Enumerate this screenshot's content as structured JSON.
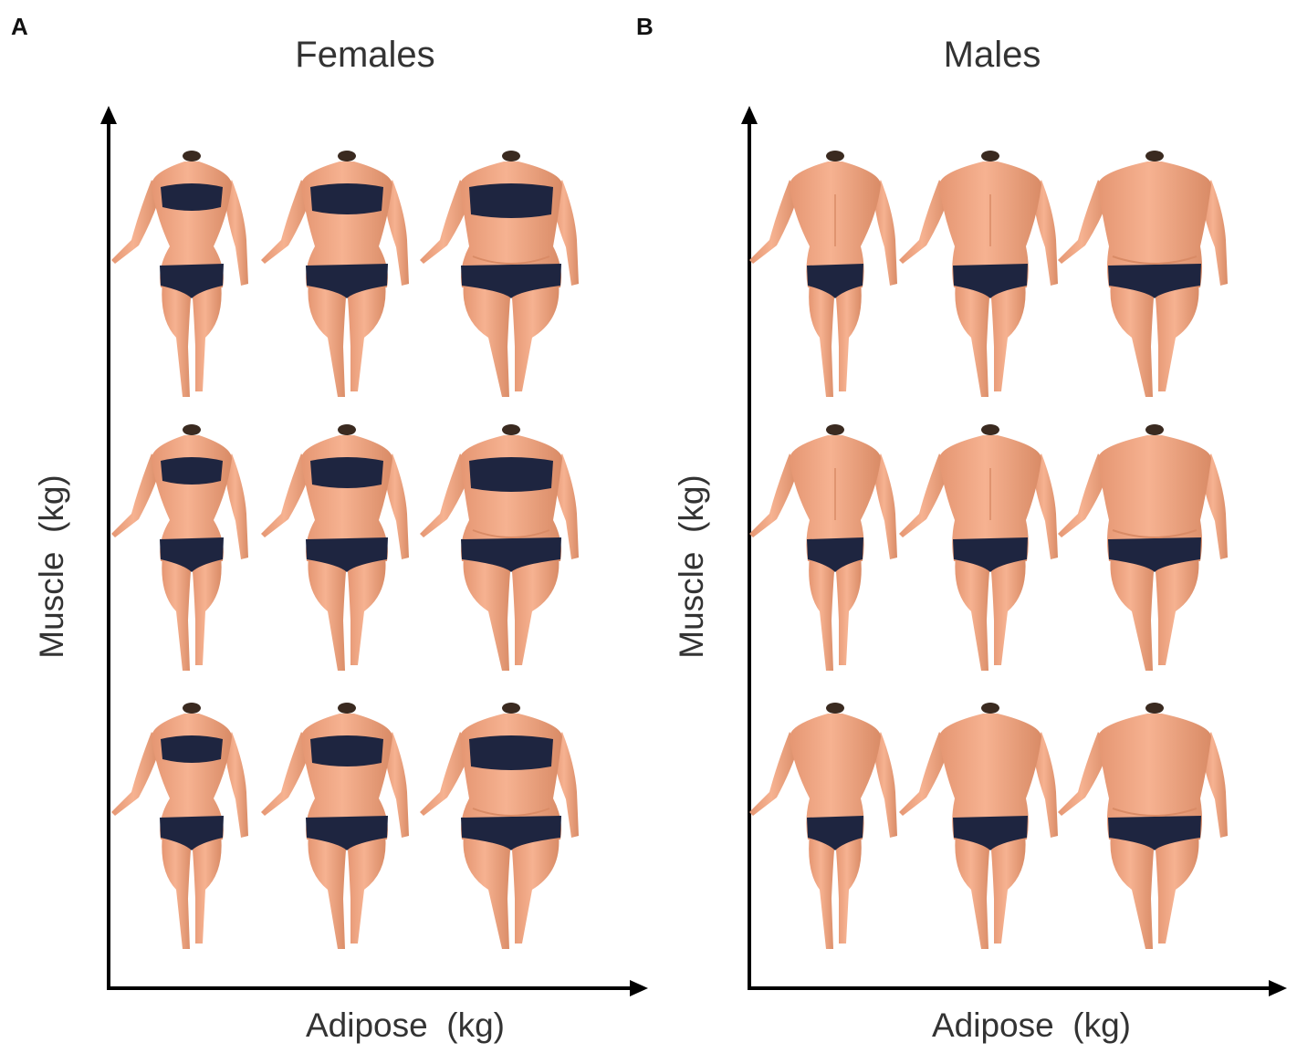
{
  "panels": [
    {
      "letter": "A",
      "title": "Females",
      "x_axis_label": "Adipose  (kg)",
      "y_axis_label": "Muscle  (kg)",
      "figure_kind": "female",
      "grid": {
        "rows": 3,
        "cols": 3,
        "row_meaning": "muscle",
        "col_meaning": "adipose"
      }
    },
    {
      "letter": "B",
      "title": "Males",
      "x_axis_label": "Adipose  (kg)",
      "y_axis_label": "Muscle  (kg)",
      "figure_kind": "male",
      "grid": {
        "rows": 3,
        "cols": 3,
        "row_meaning": "muscle",
        "col_meaning": "adipose"
      }
    }
  ],
  "colors": {
    "skin": "#f2a882",
    "skin_shadow": "#d98b66",
    "garment": "#1e2540",
    "axis": "#000000",
    "text": "#333333"
  }
}
